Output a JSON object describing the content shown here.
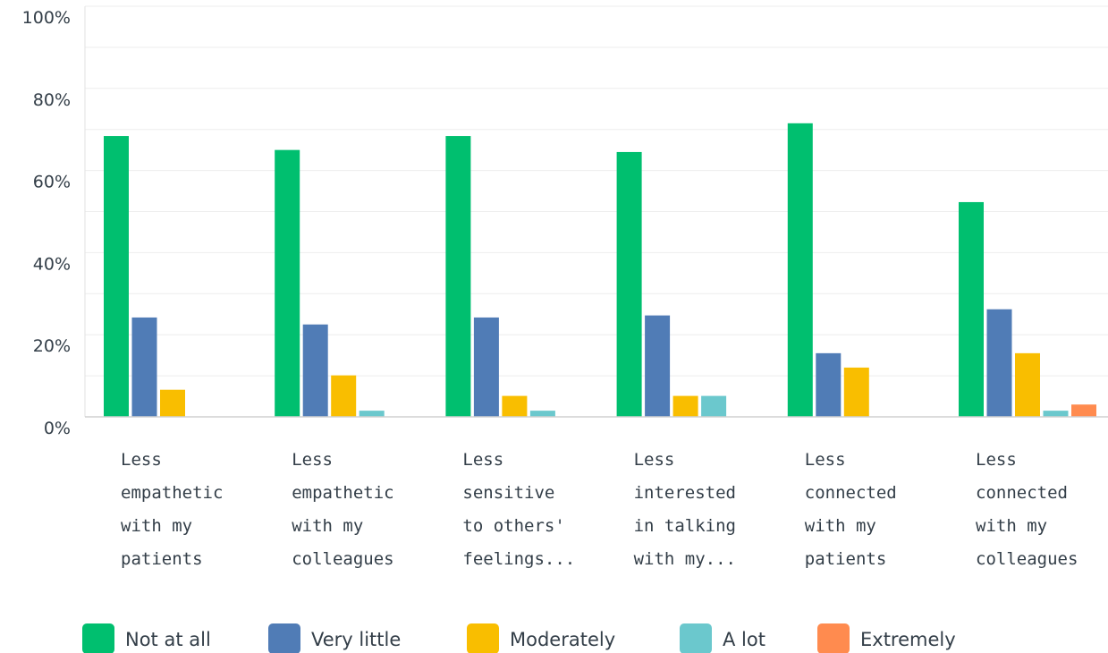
{
  "chart_data": {
    "type": "bar",
    "categories": [
      [
        "Less",
        "empathetic",
        "with my",
        "patients"
      ],
      [
        "Less",
        "empathetic",
        "with my",
        "colleagues"
      ],
      [
        "Less",
        "sensitive",
        "to others'",
        "feelings..."
      ],
      [
        "Less",
        "interested",
        "in talking",
        "with my..."
      ],
      [
        "Less",
        "connected",
        "with my",
        "patients"
      ],
      [
        "Less",
        "connected",
        "with my",
        "colleagues"
      ]
    ],
    "series": [
      {
        "name": "Not at all",
        "color": "#00bf6f",
        "values": [
          68.4,
          65.0,
          68.4,
          64.5,
          71.5,
          52.3
        ]
      },
      {
        "name": "Very little",
        "color": "#507cb6",
        "values": [
          24.2,
          22.5,
          24.2,
          24.7,
          15.5,
          26.2
        ]
      },
      {
        "name": "Moderately",
        "color": "#f9be00",
        "values": [
          6.6,
          10.1,
          5.1,
          5.1,
          12.0,
          15.5
        ]
      },
      {
        "name": "A lot",
        "color": "#6bc8cd",
        "values": [
          0,
          1.5,
          1.5,
          5.1,
          0,
          1.5
        ]
      },
      {
        "name": "Extremely",
        "color": "#ff8b4f",
        "values": [
          0,
          0,
          0,
          0,
          0,
          3.0
        ]
      }
    ],
    "y_ticks": [
      "0%",
      "20%",
      "40%",
      "60%",
      "80%",
      "100%"
    ],
    "ylim": [
      0,
      100
    ],
    "ytick_step": 20,
    "minor_grid_step": 10,
    "grid": true,
    "legend_position": "bottom"
  }
}
